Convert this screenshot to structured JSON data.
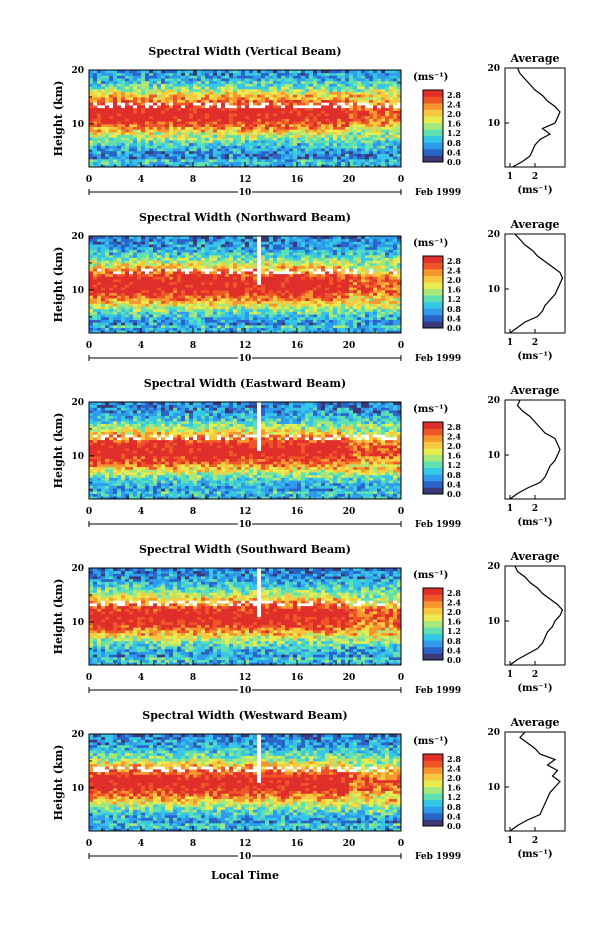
{
  "figure": {
    "date_label": "Feb 1999",
    "day_marker": "10",
    "x_axis_label": "Local Time",
    "x_ticks": [
      "0",
      "4",
      "8",
      "12",
      "16",
      "20",
      "0"
    ],
    "y_axis_label": "Height (km)",
    "y_ticks": [
      "20",
      "10"
    ],
    "colorbar_unit": "(ms⁻¹)",
    "colorbar_ticks": [
      "2.8",
      "2.4",
      "2.0",
      "1.6",
      "1.2",
      "0.8",
      "0.4",
      "0.0"
    ],
    "colorbar_colors": [
      "#3a3a78",
      "#2a64c8",
      "#2f9bea",
      "#36c6e6",
      "#5fe0b0",
      "#a8e87a",
      "#e8ec50",
      "#f8c840",
      "#f6962e",
      "#ee5628",
      "#e02e2a"
    ],
    "average_title": "Average",
    "average_unit": "(ms⁻¹)"
  },
  "chart_data": [
    {
      "type": "heatmap",
      "title": "Spectral Width (Vertical Beam)",
      "xlabel": "",
      "ylabel": "Height (km)",
      "xlim": [
        0,
        24
      ],
      "ylim": [
        2,
        20
      ],
      "colorbar_range": [
        0.0,
        3.0
      ],
      "average_profile": {
        "title": "Average",
        "xlabel": "(ms⁻¹)",
        "xticks": [
          "1",
          "2"
        ],
        "xlim": [
          0.8,
          3.2
        ],
        "ylim": [
          2,
          20
        ],
        "height": [
          2,
          3,
          4,
          5,
          6,
          7,
          8,
          9,
          10,
          11,
          12,
          13,
          14,
          15,
          16,
          17,
          18,
          19,
          20
        ],
        "width": [
          1.1,
          1.5,
          1.8,
          1.9,
          2.0,
          2.2,
          2.6,
          2.3,
          2.8,
          2.9,
          3.0,
          2.8,
          2.5,
          2.3,
          2.0,
          1.8,
          1.6,
          1.4,
          1.3
        ]
      }
    },
    {
      "type": "heatmap",
      "title": "Spectral Width (Northward Beam)",
      "xlabel": "",
      "ylabel": "Height (km)",
      "xlim": [
        0,
        24
      ],
      "ylim": [
        2,
        20
      ],
      "colorbar_range": [
        0.0,
        3.0
      ],
      "average_profile": {
        "title": "Average",
        "xlabel": "(ms⁻¹)",
        "xticks": [
          "1",
          "2"
        ],
        "xlim": [
          0.8,
          3.2
        ],
        "ylim": [
          2,
          20
        ],
        "height": [
          2,
          3,
          4,
          5,
          6,
          7,
          8,
          9,
          10,
          11,
          12,
          13,
          14,
          15,
          16,
          17,
          18,
          19,
          20
        ],
        "width": [
          1.0,
          1.3,
          1.6,
          2.1,
          2.3,
          2.4,
          2.6,
          2.8,
          2.9,
          3.0,
          3.1,
          3.0,
          2.7,
          2.4,
          2.1,
          1.9,
          1.6,
          1.4,
          1.2
        ]
      }
    },
    {
      "type": "heatmap",
      "title": "Spectral Width (Eastward Beam)",
      "xlabel": "",
      "ylabel": "Height (km)",
      "xlim": [
        0,
        24
      ],
      "ylim": [
        2,
        20
      ],
      "colorbar_range": [
        0.0,
        3.0
      ],
      "average_profile": {
        "title": "Average",
        "xlabel": "(ms⁻¹)",
        "xticks": [
          "1",
          "2"
        ],
        "xlim": [
          0.8,
          3.2
        ],
        "ylim": [
          2,
          20
        ],
        "height": [
          2,
          3,
          4,
          5,
          6,
          7,
          8,
          9,
          10,
          11,
          12,
          13,
          14,
          15,
          16,
          17,
          18,
          19,
          20
        ],
        "width": [
          1.0,
          1.3,
          1.7,
          2.2,
          2.4,
          2.5,
          2.6,
          2.8,
          2.9,
          3.0,
          2.9,
          2.8,
          2.4,
          2.2,
          2.0,
          1.8,
          1.5,
          1.3,
          1.4
        ]
      }
    },
    {
      "type": "heatmap",
      "title": "Spectral Width (Southward Beam)",
      "xlabel": "",
      "ylabel": "Height (km)",
      "xlim": [
        0,
        24
      ],
      "ylim": [
        2,
        20
      ],
      "colorbar_range": [
        0.0,
        3.0
      ],
      "average_profile": {
        "title": "Average",
        "xlabel": "(ms⁻¹)",
        "xticks": [
          "1",
          "2"
        ],
        "xlim": [
          0.8,
          3.2
        ],
        "ylim": [
          2,
          20
        ],
        "height": [
          2,
          3,
          4,
          5,
          6,
          7,
          8,
          9,
          10,
          11,
          12,
          13,
          14,
          15,
          16,
          17,
          18,
          19,
          20
        ],
        "width": [
          1.0,
          1.3,
          1.7,
          2.1,
          2.3,
          2.4,
          2.5,
          2.7,
          2.8,
          3.0,
          3.1,
          2.9,
          2.6,
          2.3,
          2.1,
          1.8,
          1.6,
          1.3,
          1.2
        ]
      }
    },
    {
      "type": "heatmap",
      "title": "Spectral Width (Westward Beam)",
      "xlabel": "",
      "ylabel": "Height (km)",
      "xlim": [
        0,
        24
      ],
      "ylim": [
        2,
        20
      ],
      "colorbar_range": [
        0.0,
        3.0
      ],
      "average_profile": {
        "title": "Average",
        "xlabel": "(ms⁻¹)",
        "xticks": [
          "1",
          "2"
        ],
        "xlim": [
          0.8,
          3.2
        ],
        "ylim": [
          2,
          20
        ],
        "height": [
          2,
          3,
          4,
          5,
          6,
          7,
          8,
          9,
          10,
          11,
          12,
          13,
          14,
          15,
          16,
          17,
          18,
          19,
          20
        ],
        "width": [
          1.0,
          1.3,
          1.7,
          2.2,
          2.3,
          2.4,
          2.5,
          2.6,
          2.8,
          3.0,
          2.7,
          2.9,
          2.5,
          2.8,
          2.2,
          2.0,
          1.7,
          1.4,
          1.6
        ]
      }
    }
  ]
}
